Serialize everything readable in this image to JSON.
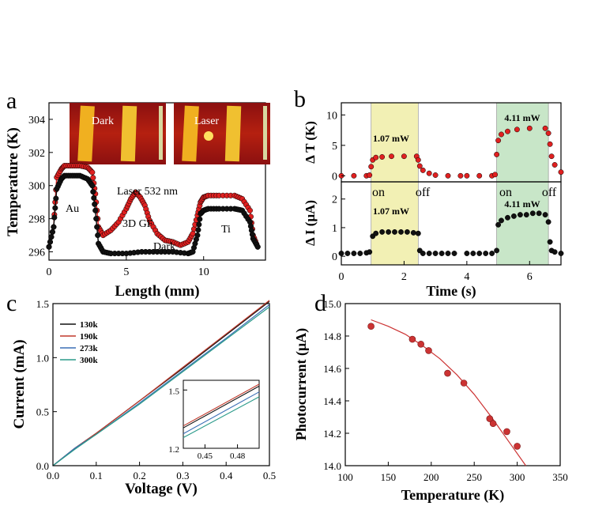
{
  "panels": {
    "a": {
      "label": "a"
    },
    "b": {
      "label": "b"
    },
    "c": {
      "label": "c"
    },
    "d": {
      "label": "d"
    }
  },
  "chart_data": [
    {
      "id": "a",
      "type": "line",
      "xlabel": "Length (mm)",
      "ylabel": "Temperature (K)",
      "xlim": [
        0,
        14
      ],
      "ylim": [
        295.5,
        305
      ],
      "xticks": [
        "0",
        "5",
        "10"
      ],
      "yticks": [
        "296",
        "298",
        "300",
        "302",
        "304"
      ],
      "series": [
        {
          "name": "Laser 532 nm",
          "color": "#e02020",
          "x": [
            0,
            0.3,
            0.5,
            0.8,
            1,
            1.5,
            2,
            2.5,
            2.8,
            3,
            3.2,
            3.5,
            4,
            4.5,
            5,
            5.3,
            5.6,
            5.9,
            6.2,
            6.5,
            7,
            7.5,
            8,
            8.5,
            9,
            9.3,
            9.6,
            9.8,
            10,
            10.3,
            11,
            12,
            12.5,
            13,
            13.2,
            13.5
          ],
          "y": [
            296.3,
            297.5,
            300.5,
            301,
            301.2,
            301.2,
            301.2,
            301.1,
            300.8,
            299.5,
            297.5,
            297,
            297.3,
            297.8,
            298.6,
            299.2,
            299.6,
            299.3,
            298.8,
            297.9,
            297.1,
            296.7,
            296.6,
            296.4,
            296.6,
            297.1,
            298.2,
            299,
            299.3,
            299.4,
            299.4,
            299.4,
            299.2,
            298.5,
            297,
            296.3
          ]
        },
        {
          "name": "Dark",
          "color": "#111111",
          "x": [
            0,
            0.3,
            0.5,
            0.8,
            1,
            1.5,
            2,
            2.5,
            2.8,
            3,
            3.2,
            3.5,
            4,
            5,
            6,
            7,
            8,
            9,
            9.3,
            9.6,
            9.8,
            10,
            10.3,
            11,
            12,
            12.5,
            13,
            13.2,
            13.5
          ],
          "y": [
            296.3,
            297.5,
            299.8,
            300.4,
            300.6,
            300.6,
            300.6,
            300.4,
            300,
            298.5,
            296.5,
            296,
            295.9,
            295.9,
            296,
            296,
            296,
            295.9,
            296,
            297,
            298.3,
            298.5,
            298.6,
            298.6,
            298.6,
            298.5,
            297.8,
            296.8,
            296.3
          ]
        }
      ],
      "annotations": [
        "Au",
        "Laser 532 nm",
        "3D GF",
        "Dark",
        "Ti"
      ],
      "insets": [
        {
          "label": "Dark"
        },
        {
          "label": "Laser"
        }
      ]
    },
    {
      "id": "b-top",
      "type": "scatter",
      "ylabel": "Δ T (K)",
      "xlim": [
        0,
        7
      ],
      "ylim": [
        -1,
        12
      ],
      "yticks": [
        "0",
        "5",
        "10"
      ],
      "highlights": [
        {
          "x": [
            0.95,
            2.45
          ],
          "color": "#f2f0b4",
          "label": "1.07 mW"
        },
        {
          "x": [
            4.95,
            6.6
          ],
          "color": "#c8e6c8",
          "label": "4.11 mW"
        }
      ],
      "series": [
        {
          "name": "",
          "color": "#e02020",
          "x": [
            0,
            0.4,
            0.8,
            0.9,
            0.95,
            1.0,
            1.1,
            1.3,
            1.6,
            2.0,
            2.4,
            2.45,
            2.5,
            2.6,
            2.8,
            3.0,
            3.4,
            3.8,
            4.0,
            4.4,
            4.8,
            4.9,
            4.95,
            5.0,
            5.1,
            5.3,
            5.6,
            6.0,
            6.5,
            6.6,
            6.65,
            6.7,
            6.8,
            7.0
          ],
          "y": [
            0,
            0,
            0,
            0.1,
            1.5,
            2.6,
            3.0,
            3.1,
            3.2,
            3.2,
            3.2,
            2.6,
            1.6,
            0.9,
            0.4,
            0.1,
            0,
            0,
            0,
            0,
            0,
            0.2,
            3.5,
            5.8,
            6.8,
            7.3,
            7.6,
            7.8,
            7.8,
            7.0,
            5.2,
            3.2,
            1.8,
            0.6
          ]
        }
      ]
    },
    {
      "id": "b-bottom",
      "type": "scatter",
      "xlabel": "Time (s)",
      "ylabel": "Δ I (μA)",
      "xlim": [
        0,
        7
      ],
      "ylim": [
        -0.3,
        2.6
      ],
      "xticks": [
        "0",
        "2",
        "4",
        "6"
      ],
      "yticks": [
        "0",
        "1",
        "2"
      ],
      "highlights": [
        {
          "x": [
            0.95,
            2.45
          ],
          "color": "#f2f0b4",
          "label": "1.07 mW"
        },
        {
          "x": [
            4.95,
            6.6
          ],
          "color": "#c8e6c8",
          "label": "4.11 mW"
        }
      ],
      "state_labels": [
        "on",
        "off",
        "on",
        "off"
      ],
      "series": [
        {
          "name": "",
          "color": "#111111",
          "x": [
            0,
            0.2,
            0.4,
            0.6,
            0.8,
            0.9,
            1.0,
            1.1,
            1.3,
            1.5,
            1.7,
            1.9,
            2.1,
            2.3,
            2.45,
            2.5,
            2.6,
            2.8,
            3.0,
            3.2,
            3.4,
            3.6,
            4.0,
            4.2,
            4.4,
            4.6,
            4.8,
            4.95,
            5.0,
            5.1,
            5.3,
            5.5,
            5.7,
            5.9,
            6.1,
            6.3,
            6.5,
            6.6,
            6.65,
            6.7,
            6.8,
            7.0
          ],
          "y": [
            0.1,
            0.1,
            0.1,
            0.1,
            0.12,
            0.15,
            0.7,
            0.8,
            0.85,
            0.85,
            0.85,
            0.85,
            0.85,
            0.82,
            0.8,
            0.2,
            0.1,
            0.1,
            0.1,
            0.1,
            0.1,
            0.1,
            0.1,
            0.1,
            0.1,
            0.1,
            0.1,
            0.2,
            1.1,
            1.25,
            1.35,
            1.4,
            1.45,
            1.45,
            1.5,
            1.5,
            1.45,
            1.2,
            0.5,
            0.2,
            0.15,
            0.1
          ]
        }
      ]
    },
    {
      "id": "c",
      "type": "line",
      "xlabel": "Voltage (V)",
      "ylabel": "Current (mA)",
      "xlim": [
        0,
        0.5
      ],
      "ylim": [
        0,
        1.5
      ],
      "xticks": [
        "0.0",
        "0.1",
        "0.2",
        "0.3",
        "0.4",
        "0.5"
      ],
      "yticks": [
        "0.0",
        "0.5",
        "1.0",
        "1.5"
      ],
      "legend_position": "top-left",
      "series": [
        {
          "name": "130k",
          "color": "#111111",
          "x": [
            0,
            0.05,
            0.1,
            0.2,
            0.3,
            0.4,
            0.5
          ],
          "y": [
            0,
            0.16,
            0.3,
            0.6,
            0.9,
            1.21,
            1.52
          ]
        },
        {
          "name": "190k",
          "color": "#c0392b",
          "x": [
            0,
            0.05,
            0.1,
            0.2,
            0.3,
            0.4,
            0.5
          ],
          "y": [
            0,
            0.16,
            0.3,
            0.6,
            0.91,
            1.22,
            1.53
          ]
        },
        {
          "name": "273k",
          "color": "#3b6fb6",
          "x": [
            0,
            0.05,
            0.1,
            0.2,
            0.3,
            0.4,
            0.5
          ],
          "y": [
            0,
            0.16,
            0.29,
            0.58,
            0.88,
            1.18,
            1.49
          ]
        },
        {
          "name": "300k",
          "color": "#2a9a8a",
          "x": [
            0,
            0.05,
            0.1,
            0.2,
            0.3,
            0.4,
            0.5
          ],
          "y": [
            0,
            0.15,
            0.29,
            0.57,
            0.87,
            1.17,
            1.47
          ]
        }
      ],
      "inset": {
        "xlim": [
          0.43,
          0.5
        ],
        "ylim": [
          1.2,
          1.55
        ],
        "xticks": [
          "0.45",
          "0.48"
        ],
        "yticks": [
          "1.2",
          "1.5"
        ],
        "series": [
          {
            "name": "130k",
            "color": "#111111",
            "x": [
              0.43,
              0.5
            ],
            "y": [
              1.305,
              1.52
            ]
          },
          {
            "name": "190k",
            "color": "#c0392b",
            "x": [
              0.43,
              0.5
            ],
            "y": [
              1.315,
              1.53
            ]
          },
          {
            "name": "273k",
            "color": "#3b6fb6",
            "x": [
              0.43,
              0.5
            ],
            "y": [
              1.275,
              1.49
            ]
          },
          {
            "name": "300k",
            "color": "#2a9a8a",
            "x": [
              0.43,
              0.5
            ],
            "y": [
              1.255,
              1.465
            ]
          }
        ]
      }
    },
    {
      "id": "d",
      "type": "scatter",
      "xlabel": "Temperature (K)",
      "ylabel": "Photocurrent (μA)",
      "xlim": [
        100,
        350
      ],
      "ylim": [
        14.0,
        15.0
      ],
      "xticks": [
        "100",
        "150",
        "200",
        "250",
        "300",
        "350"
      ],
      "yticks": [
        "14.0",
        "14.2",
        "14.4",
        "14.6",
        "14.8",
        "15.0"
      ],
      "series": [
        {
          "name": "",
          "color": "#cc3333",
          "x": [
            130,
            178,
            188,
            197,
            219,
            238,
            268,
            272,
            288,
            300
          ],
          "y": [
            14.86,
            14.78,
            14.75,
            14.71,
            14.57,
            14.51,
            14.29,
            14.26,
            14.21,
            14.12
          ]
        },
        {
          "name": "",
          "color": "#cc3333",
          "fit": true,
          "x": [
            130,
            150,
            170,
            190,
            210,
            230,
            250,
            270,
            290,
            310
          ],
          "y": [
            14.9,
            14.86,
            14.81,
            14.74,
            14.66,
            14.56,
            14.44,
            14.3,
            14.15,
            14.0
          ]
        }
      ]
    }
  ]
}
